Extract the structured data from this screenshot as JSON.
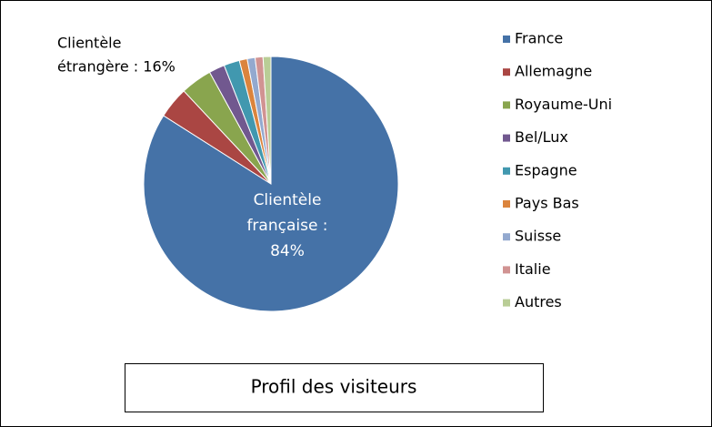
{
  "chart_data": {
    "type": "pie",
    "title": "Profil des visiteurs",
    "categories": [
      "France",
      "Allemagne",
      "Royaume-Uni",
      "Bel/Lux",
      "Espagne",
      "Pays Bas",
      "Suisse",
      "Italie",
      "Autres"
    ],
    "values": [
      84,
      4,
      4,
      2,
      2,
      1,
      1,
      1,
      1
    ],
    "colors": [
      "#4572a7",
      "#aa4643",
      "#89a54e",
      "#71588f",
      "#4198af",
      "#db843d",
      "#93a9cf",
      "#d19392",
      "#b9cd96"
    ],
    "legend": "right",
    "annotations": [
      {
        "lines": [
          "Clientèle",
          "étrangère : 16%"
        ]
      },
      {
        "lines": [
          "Clientèle",
          "française :",
          "84%"
        ]
      }
    ]
  }
}
